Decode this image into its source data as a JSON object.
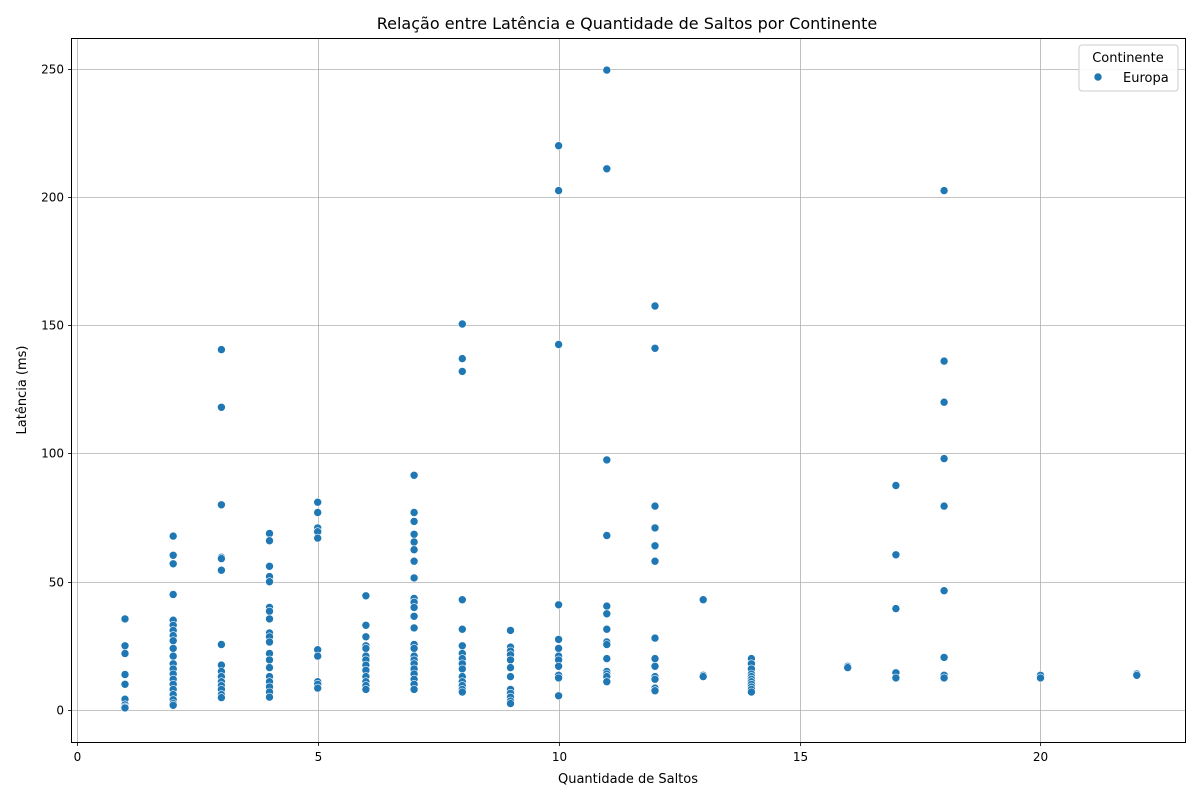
{
  "chart_data": {
    "type": "scatter",
    "title": "Relação entre Latência e Quantidade de Saltos por Continente",
    "xlabel": "Quantidade de Saltos",
    "ylabel": "Latência (ms)",
    "xlim": [
      -0.1,
      23
    ],
    "ylim": [
      -12.5,
      262
    ],
    "xticks": [
      0,
      5,
      10,
      15,
      20
    ],
    "yticks": [
      0,
      50,
      100,
      150,
      200,
      250
    ],
    "grid": true,
    "legend": {
      "title": "Continente",
      "position": "top-right"
    },
    "series": [
      {
        "name": "Europa",
        "color": "#1f77b4",
        "points": [
          [
            1,
            35.5
          ],
          [
            1,
            25
          ],
          [
            1,
            22
          ],
          [
            1,
            13.8
          ],
          [
            1,
            10
          ],
          [
            1,
            4.2
          ],
          [
            1,
            2
          ],
          [
            1,
            1.2
          ],
          [
            1,
            0.8
          ],
          [
            2,
            67.8
          ],
          [
            2,
            60.3
          ],
          [
            2,
            57
          ],
          [
            2,
            45
          ],
          [
            2,
            35
          ],
          [
            2,
            33
          ],
          [
            2,
            31
          ],
          [
            2,
            29
          ],
          [
            2,
            27
          ],
          [
            2,
            24
          ],
          [
            2,
            21
          ],
          [
            2,
            18
          ],
          [
            2,
            16
          ],
          [
            2,
            14
          ],
          [
            2,
            12
          ],
          [
            2,
            10
          ],
          [
            2,
            8
          ],
          [
            2,
            6
          ],
          [
            2,
            4
          ],
          [
            2,
            2.5
          ],
          [
            2,
            1.8
          ],
          [
            3,
            140.5
          ],
          [
            3,
            118
          ],
          [
            3,
            80
          ],
          [
            3,
            59.5
          ],
          [
            3,
            59
          ],
          [
            3,
            54.5
          ],
          [
            3,
            25.5
          ],
          [
            3,
            17.5
          ],
          [
            3,
            15
          ],
          [
            3,
            13
          ],
          [
            3,
            11
          ],
          [
            3,
            9.5
          ],
          [
            3,
            8
          ],
          [
            3,
            6
          ],
          [
            3,
            4.8
          ],
          [
            4,
            68.8
          ],
          [
            4,
            66
          ],
          [
            4,
            56
          ],
          [
            4,
            52
          ],
          [
            4,
            50
          ],
          [
            4,
            40
          ],
          [
            4,
            38.5
          ],
          [
            4,
            35.5
          ],
          [
            4,
            30
          ],
          [
            4,
            28.5
          ],
          [
            4,
            26.5
          ],
          [
            4,
            22
          ],
          [
            4,
            19.5
          ],
          [
            4,
            16.5
          ],
          [
            4,
            13
          ],
          [
            4,
            11
          ],
          [
            4,
            9
          ],
          [
            4,
            7
          ],
          [
            4,
            5
          ],
          [
            5,
            81
          ],
          [
            5,
            77
          ],
          [
            5,
            71
          ],
          [
            5,
            69.5
          ],
          [
            5,
            67
          ],
          [
            5,
            23.5
          ],
          [
            5,
            21
          ],
          [
            5,
            11
          ],
          [
            5,
            10
          ],
          [
            5,
            8.5
          ],
          [
            6,
            44.5
          ],
          [
            6,
            33
          ],
          [
            6,
            28.5
          ],
          [
            6,
            25
          ],
          [
            6,
            24
          ],
          [
            6,
            21
          ],
          [
            6,
            19.5
          ],
          [
            6,
            17.5
          ],
          [
            6,
            15.5
          ],
          [
            6,
            13
          ],
          [
            6,
            11
          ],
          [
            6,
            9.5
          ],
          [
            6,
            8
          ],
          [
            7,
            91.5
          ],
          [
            7,
            77
          ],
          [
            7,
            73.5
          ],
          [
            7,
            68.5
          ],
          [
            7,
            65.5
          ],
          [
            7,
            62.5
          ],
          [
            7,
            58
          ],
          [
            7,
            51.5
          ],
          [
            7,
            43.5
          ],
          [
            7,
            42
          ],
          [
            7,
            40
          ],
          [
            7,
            36.5
          ],
          [
            7,
            32
          ],
          [
            7,
            25.5
          ],
          [
            7,
            24
          ],
          [
            7,
            21
          ],
          [
            7,
            19.5
          ],
          [
            7,
            18
          ],
          [
            7,
            16
          ],
          [
            7,
            14
          ],
          [
            7,
            12
          ],
          [
            7,
            10
          ],
          [
            7,
            8
          ],
          [
            8,
            150.5
          ],
          [
            8,
            137
          ],
          [
            8,
            132
          ],
          [
            8,
            43
          ],
          [
            8,
            31.5
          ],
          [
            8,
            25
          ],
          [
            8,
            22
          ],
          [
            8,
            20
          ],
          [
            8,
            18
          ],
          [
            8,
            16
          ],
          [
            8,
            13
          ],
          [
            8,
            11
          ],
          [
            8,
            9.5
          ],
          [
            8,
            8
          ],
          [
            8,
            7
          ],
          [
            9,
            31
          ],
          [
            9,
            24.5
          ],
          [
            9,
            23
          ],
          [
            9,
            21.5
          ],
          [
            9,
            19.5
          ],
          [
            9,
            16.5
          ],
          [
            9,
            13
          ],
          [
            9,
            8
          ],
          [
            9,
            6.5
          ],
          [
            9,
            5
          ],
          [
            9,
            3.5
          ],
          [
            9,
            2.5
          ],
          [
            10,
            220
          ],
          [
            10,
            202.5
          ],
          [
            10,
            142.5
          ],
          [
            10,
            41
          ],
          [
            10,
            27.5
          ],
          [
            10,
            24
          ],
          [
            10,
            21
          ],
          [
            10,
            19.5
          ],
          [
            10,
            17
          ],
          [
            10,
            13.5
          ],
          [
            10,
            12.5
          ],
          [
            10,
            5.5
          ],
          [
            11,
            249.5
          ],
          [
            11,
            211
          ],
          [
            11,
            97.5
          ],
          [
            11,
            68
          ],
          [
            11,
            40.5
          ],
          [
            11,
            37.5
          ],
          [
            11,
            31.5
          ],
          [
            11,
            26.5
          ],
          [
            11,
            25.5
          ],
          [
            11,
            20
          ],
          [
            11,
            15
          ],
          [
            11,
            14
          ],
          [
            11,
            13
          ],
          [
            11,
            11
          ],
          [
            12,
            157.5
          ],
          [
            12,
            141
          ],
          [
            12,
            79.5
          ],
          [
            12,
            71
          ],
          [
            12,
            64
          ],
          [
            12,
            58
          ],
          [
            12,
            28
          ],
          [
            12,
            20
          ],
          [
            12,
            17
          ],
          [
            12,
            13
          ],
          [
            12,
            12
          ],
          [
            12,
            8.5
          ],
          [
            12,
            7.5
          ],
          [
            13,
            43
          ],
          [
            13,
            13.5
          ],
          [
            13,
            13
          ],
          [
            14,
            20
          ],
          [
            14,
            18
          ],
          [
            14,
            16
          ],
          [
            14,
            14
          ],
          [
            14,
            13
          ],
          [
            14,
            12
          ],
          [
            14,
            11
          ],
          [
            14,
            10
          ],
          [
            14,
            9
          ],
          [
            14,
            8
          ],
          [
            14,
            7
          ],
          [
            16,
            17
          ],
          [
            16,
            16.5
          ],
          [
            17,
            87.5
          ],
          [
            17,
            60.5
          ],
          [
            17,
            39.5
          ],
          [
            17,
            14.5
          ],
          [
            17,
            12.5
          ],
          [
            18,
            202.5
          ],
          [
            18,
            136
          ],
          [
            18,
            120
          ],
          [
            18,
            98
          ],
          [
            18,
            79.5
          ],
          [
            18,
            46.5
          ],
          [
            18,
            20.5
          ],
          [
            18,
            13.5
          ],
          [
            18,
            12.5
          ],
          [
            20,
            13.5
          ],
          [
            20,
            12.5
          ],
          [
            22,
            14
          ],
          [
            22,
            13.5
          ]
        ]
      }
    ]
  }
}
